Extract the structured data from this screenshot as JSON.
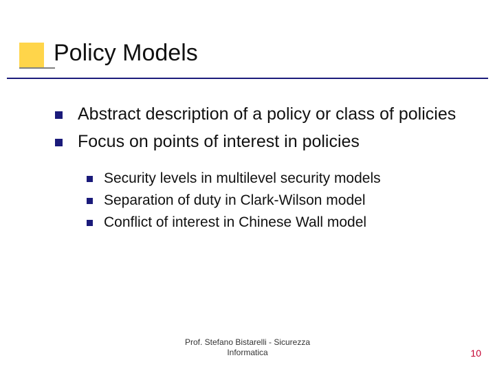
{
  "title": "Policy Models",
  "colors": {
    "accent_square": "#ffd54a",
    "title_underline": "#1a1a7a",
    "bullet": "#1a1a7a",
    "page_number": "#c40030",
    "text": "#111111",
    "background": "#ffffff"
  },
  "bullets_level1": [
    "Abstract description of a policy or class of policies",
    "Focus on points of interest in policies"
  ],
  "bullets_level2": [
    "Security levels in multilevel security models",
    "Separation of duty in Clark-Wilson model",
    "Conflict of interest in Chinese Wall model"
  ],
  "footer_line1": "Prof. Stefano Bistarelli - Sicurezza",
  "footer_line2": "Informatica",
  "page_number": "10"
}
